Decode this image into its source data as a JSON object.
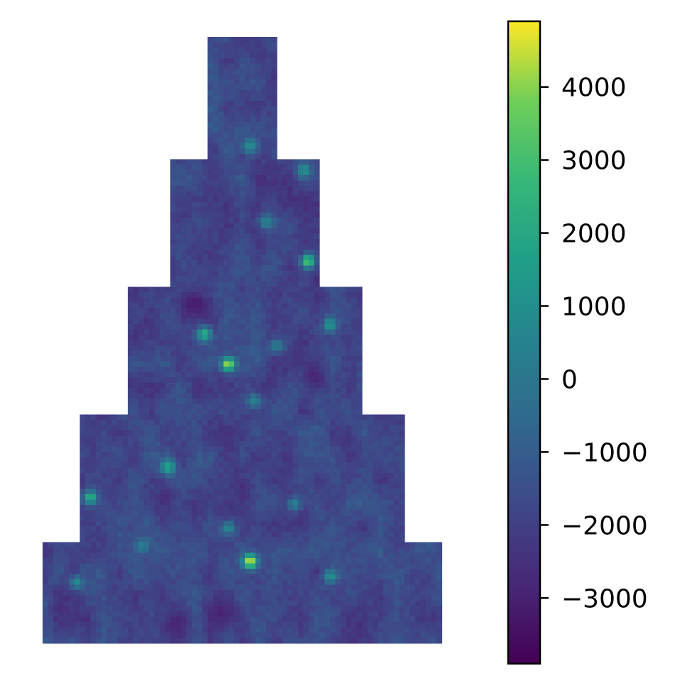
{
  "chart_data": {
    "type": "heatmap",
    "title": "",
    "xlabel": "",
    "ylabel": "",
    "grid": false,
    "axes_visible": false,
    "shape": "stepped pyramid (4 tiers widening downward, plus a narrow top column)",
    "shape_tiers_x_from_top": [
      {
        "x_range": [
          0.42,
          0.58
        ],
        "y_range": [
          0.0,
          0.2
        ]
      },
      {
        "x_range": [
          0.32,
          0.69
        ],
        "y_range": [
          0.2,
          0.41
        ]
      },
      {
        "x_range": [
          0.21,
          0.8
        ],
        "y_range": [
          0.41,
          0.62
        ]
      },
      {
        "x_range": [
          0.1,
          0.91
        ],
        "y_range": [
          0.62,
          0.83
        ]
      },
      {
        "x_range": [
          0.0,
          1.0
        ],
        "y_range": [
          0.83,
          1.0
        ]
      }
    ],
    "value_range": [
      -3900,
      4900
    ],
    "background_mean": -1800,
    "background_spread": 700,
    "hotspots": [
      {
        "x": 0.52,
        "y": 0.865,
        "value": 4900,
        "sigma": 0.013
      },
      {
        "x": 0.465,
        "y": 0.54,
        "value": 4500,
        "sigma": 0.012
      },
      {
        "x": 0.665,
        "y": 0.37,
        "value": 3600,
        "sigma": 0.012
      },
      {
        "x": 0.405,
        "y": 0.49,
        "value": 2500,
        "sigma": 0.013
      },
      {
        "x": 0.12,
        "y": 0.76,
        "value": 2500,
        "sigma": 0.012
      },
      {
        "x": 0.315,
        "y": 0.71,
        "value": 2000,
        "sigma": 0.014
      },
      {
        "x": 0.72,
        "y": 0.475,
        "value": 1600,
        "sigma": 0.012
      },
      {
        "x": 0.655,
        "y": 0.22,
        "value": 1300,
        "sigma": 0.012
      },
      {
        "x": 0.52,
        "y": 0.18,
        "value": 1000,
        "sigma": 0.014
      },
      {
        "x": 0.72,
        "y": 0.89,
        "value": 1200,
        "sigma": 0.012
      },
      {
        "x": 0.085,
        "y": 0.9,
        "value": 900,
        "sigma": 0.012
      },
      {
        "x": 0.465,
        "y": 0.81,
        "value": 800,
        "sigma": 0.013
      },
      {
        "x": 0.56,
        "y": 0.305,
        "value": 600,
        "sigma": 0.014
      },
      {
        "x": 0.53,
        "y": 0.6,
        "value": 600,
        "sigma": 0.013
      },
      {
        "x": 0.63,
        "y": 0.77,
        "value": 500,
        "sigma": 0.012
      },
      {
        "x": 0.25,
        "y": 0.84,
        "value": 400,
        "sigma": 0.013
      },
      {
        "x": 0.585,
        "y": 0.51,
        "value": 300,
        "sigma": 0.014
      }
    ],
    "coldspots": [
      {
        "x": 0.38,
        "y": 0.44,
        "value": -3900,
        "sigma": 0.03
      },
      {
        "x": 0.68,
        "y": 0.56,
        "value": -3300,
        "sigma": 0.02
      },
      {
        "x": 0.45,
        "y": 0.95,
        "value": -3400,
        "sigma": 0.03
      },
      {
        "x": 0.33,
        "y": 0.97,
        "value": -3300,
        "sigma": 0.03
      }
    ],
    "colorbar": {
      "colormap": "viridis",
      "vmin": -3900,
      "vmax": 4900,
      "ticks": [
        -3000,
        -2000,
        -1000,
        0,
        1000,
        2000,
        3000,
        4000
      ],
      "tick_labels": [
        "−3000",
        "−2000",
        "−1000",
        "0",
        "1000",
        "2000",
        "3000",
        "4000"
      ]
    }
  }
}
